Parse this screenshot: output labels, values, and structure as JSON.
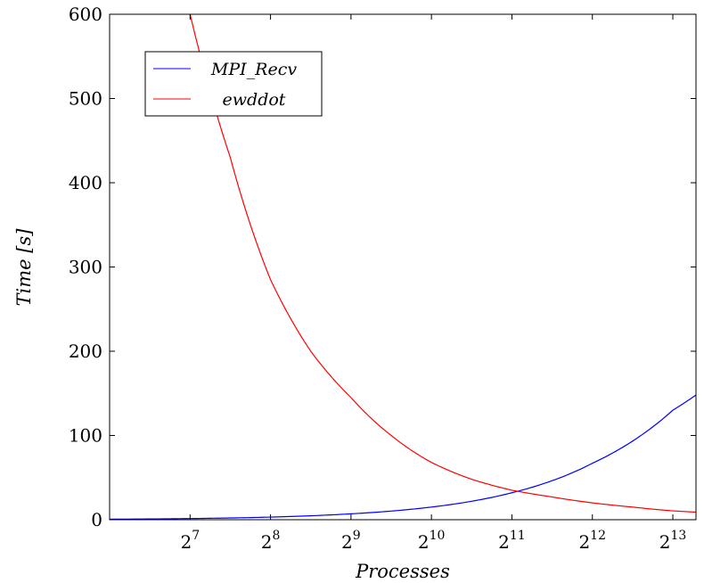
{
  "chart_data": {
    "type": "line",
    "xlabel": "Processes",
    "ylabel": "Time [s]",
    "x_scale": "log2",
    "xlim": [
      64,
      10000
    ],
    "ylim": [
      0,
      600
    ],
    "x_ticks": [
      128,
      256,
      512,
      1024,
      2048,
      4096,
      8192
    ],
    "x_tick_labels": [
      {
        "base": "2",
        "exp": "7"
      },
      {
        "base": "2",
        "exp": "8"
      },
      {
        "base": "2",
        "exp": "9"
      },
      {
        "base": "2",
        "exp": "10"
      },
      {
        "base": "2",
        "exp": "11"
      },
      {
        "base": "2",
        "exp": "12"
      },
      {
        "base": "2",
        "exp": "13"
      }
    ],
    "y_ticks": [
      0,
      100,
      200,
      300,
      400,
      500,
      600
    ],
    "y_tick_labels": [
      "0",
      "100",
      "200",
      "300",
      "400",
      "500",
      "600"
    ],
    "grid": false,
    "legend_position": "top-left",
    "series": [
      {
        "name": "MPI_Recv",
        "color": "#0000ff",
        "x": [
          64,
          128,
          256,
          512,
          1024,
          2048,
          4096,
          8192,
          10000
        ],
        "y": [
          0.6,
          1.4,
          3.1,
          7.0,
          15.0,
          32.0,
          67.0,
          130.0,
          148.0
        ]
      },
      {
        "name": "ewddot",
        "color": "#ff0000",
        "x": [
          128,
          181,
          256,
          362,
          512,
          724,
          1024,
          1448,
          2048,
          2896,
          4096,
          5793,
          8192,
          10000
        ],
        "y": [
          600,
          430,
          285,
          200,
          145,
          100,
          68,
          48,
          35,
          27,
          20,
          15,
          10.5,
          9
        ]
      }
    ]
  }
}
